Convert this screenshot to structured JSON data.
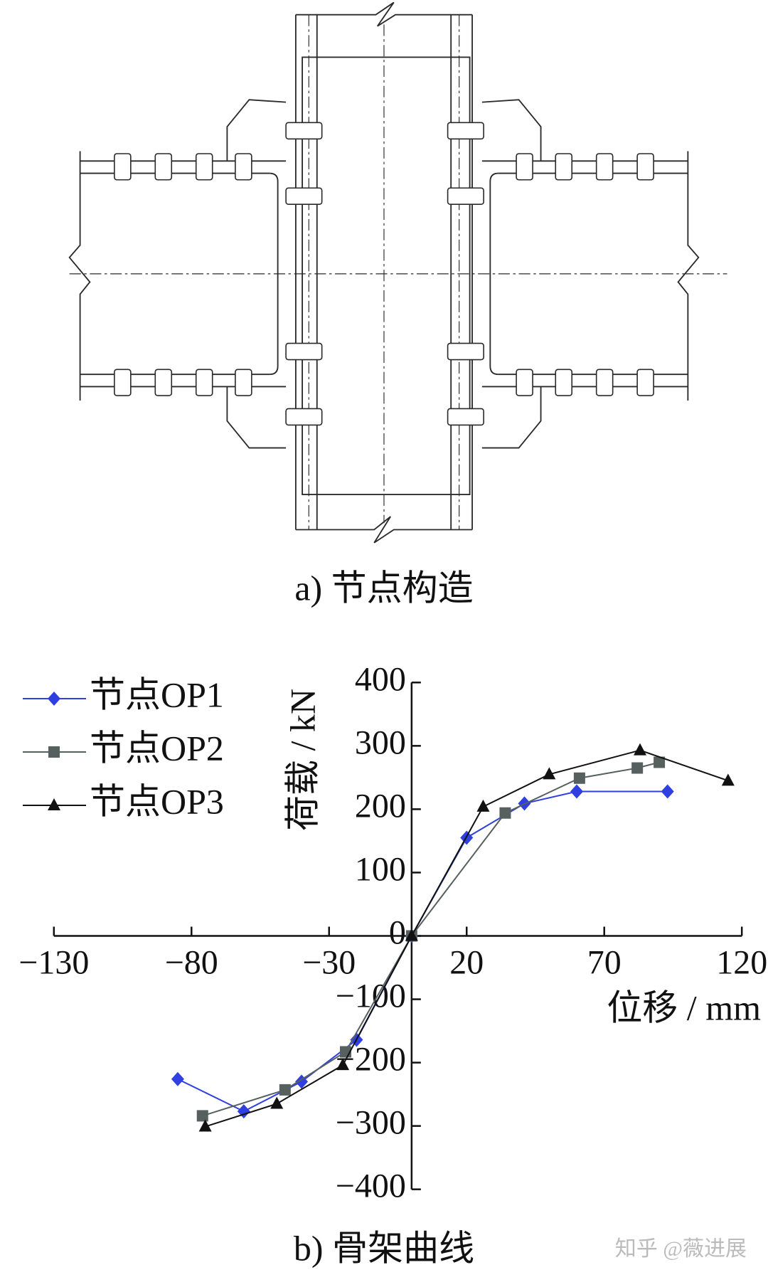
{
  "diagram": {
    "caption": "a)  节点构造"
  },
  "chart_data": {
    "type": "line",
    "caption": "b)  骨架曲线",
    "x_label": "位移 / mm",
    "y_label": "荷载 / kN",
    "xlim": [
      -130,
      120
    ],
    "ylim": [
      -400,
      400
    ],
    "xticks": [
      {
        "value": -130,
        "label": "−130"
      },
      {
        "value": -80,
        "label": "−80"
      },
      {
        "value": -30,
        "label": "−30"
      },
      20,
      70,
      120
    ],
    "yticks": [
      {
        "value": -400,
        "label": "−400"
      },
      {
        "value": -300,
        "label": "−300"
      },
      {
        "value": -200,
        "label": "−200"
      },
      {
        "value": -100,
        "label": "−100"
      },
      0,
      100,
      200,
      300,
      400
    ],
    "grid": false,
    "legend": "top-left",
    "series": [
      {
        "name": "节点OP1",
        "color": "#2f3fe0",
        "marker": "diamond",
        "x": [
          -85,
          -61,
          -40,
          -20,
          0,
          20,
          41,
          60,
          93
        ],
        "values": [
          -226,
          -277,
          -230,
          -164,
          0,
          155,
          209,
          228,
          228
        ]
      },
      {
        "name": "节点OP2",
        "color": "#55605f",
        "marker": "square",
        "x": [
          -76,
          -46,
          -24,
          0,
          34,
          61,
          82,
          90
        ],
        "values": [
          -284,
          -243,
          -183,
          0,
          194,
          249,
          265,
          274
        ]
      },
      {
        "name": "节点OP3",
        "color": "#111111",
        "marker": "triangle",
        "x": [
          -75,
          -49,
          -25,
          0,
          26,
          50,
          83,
          115
        ],
        "values": [
          -301,
          -265,
          -204,
          0,
          204,
          255,
          293,
          245
        ]
      }
    ]
  },
  "watermark": "知乎 @薇进展"
}
